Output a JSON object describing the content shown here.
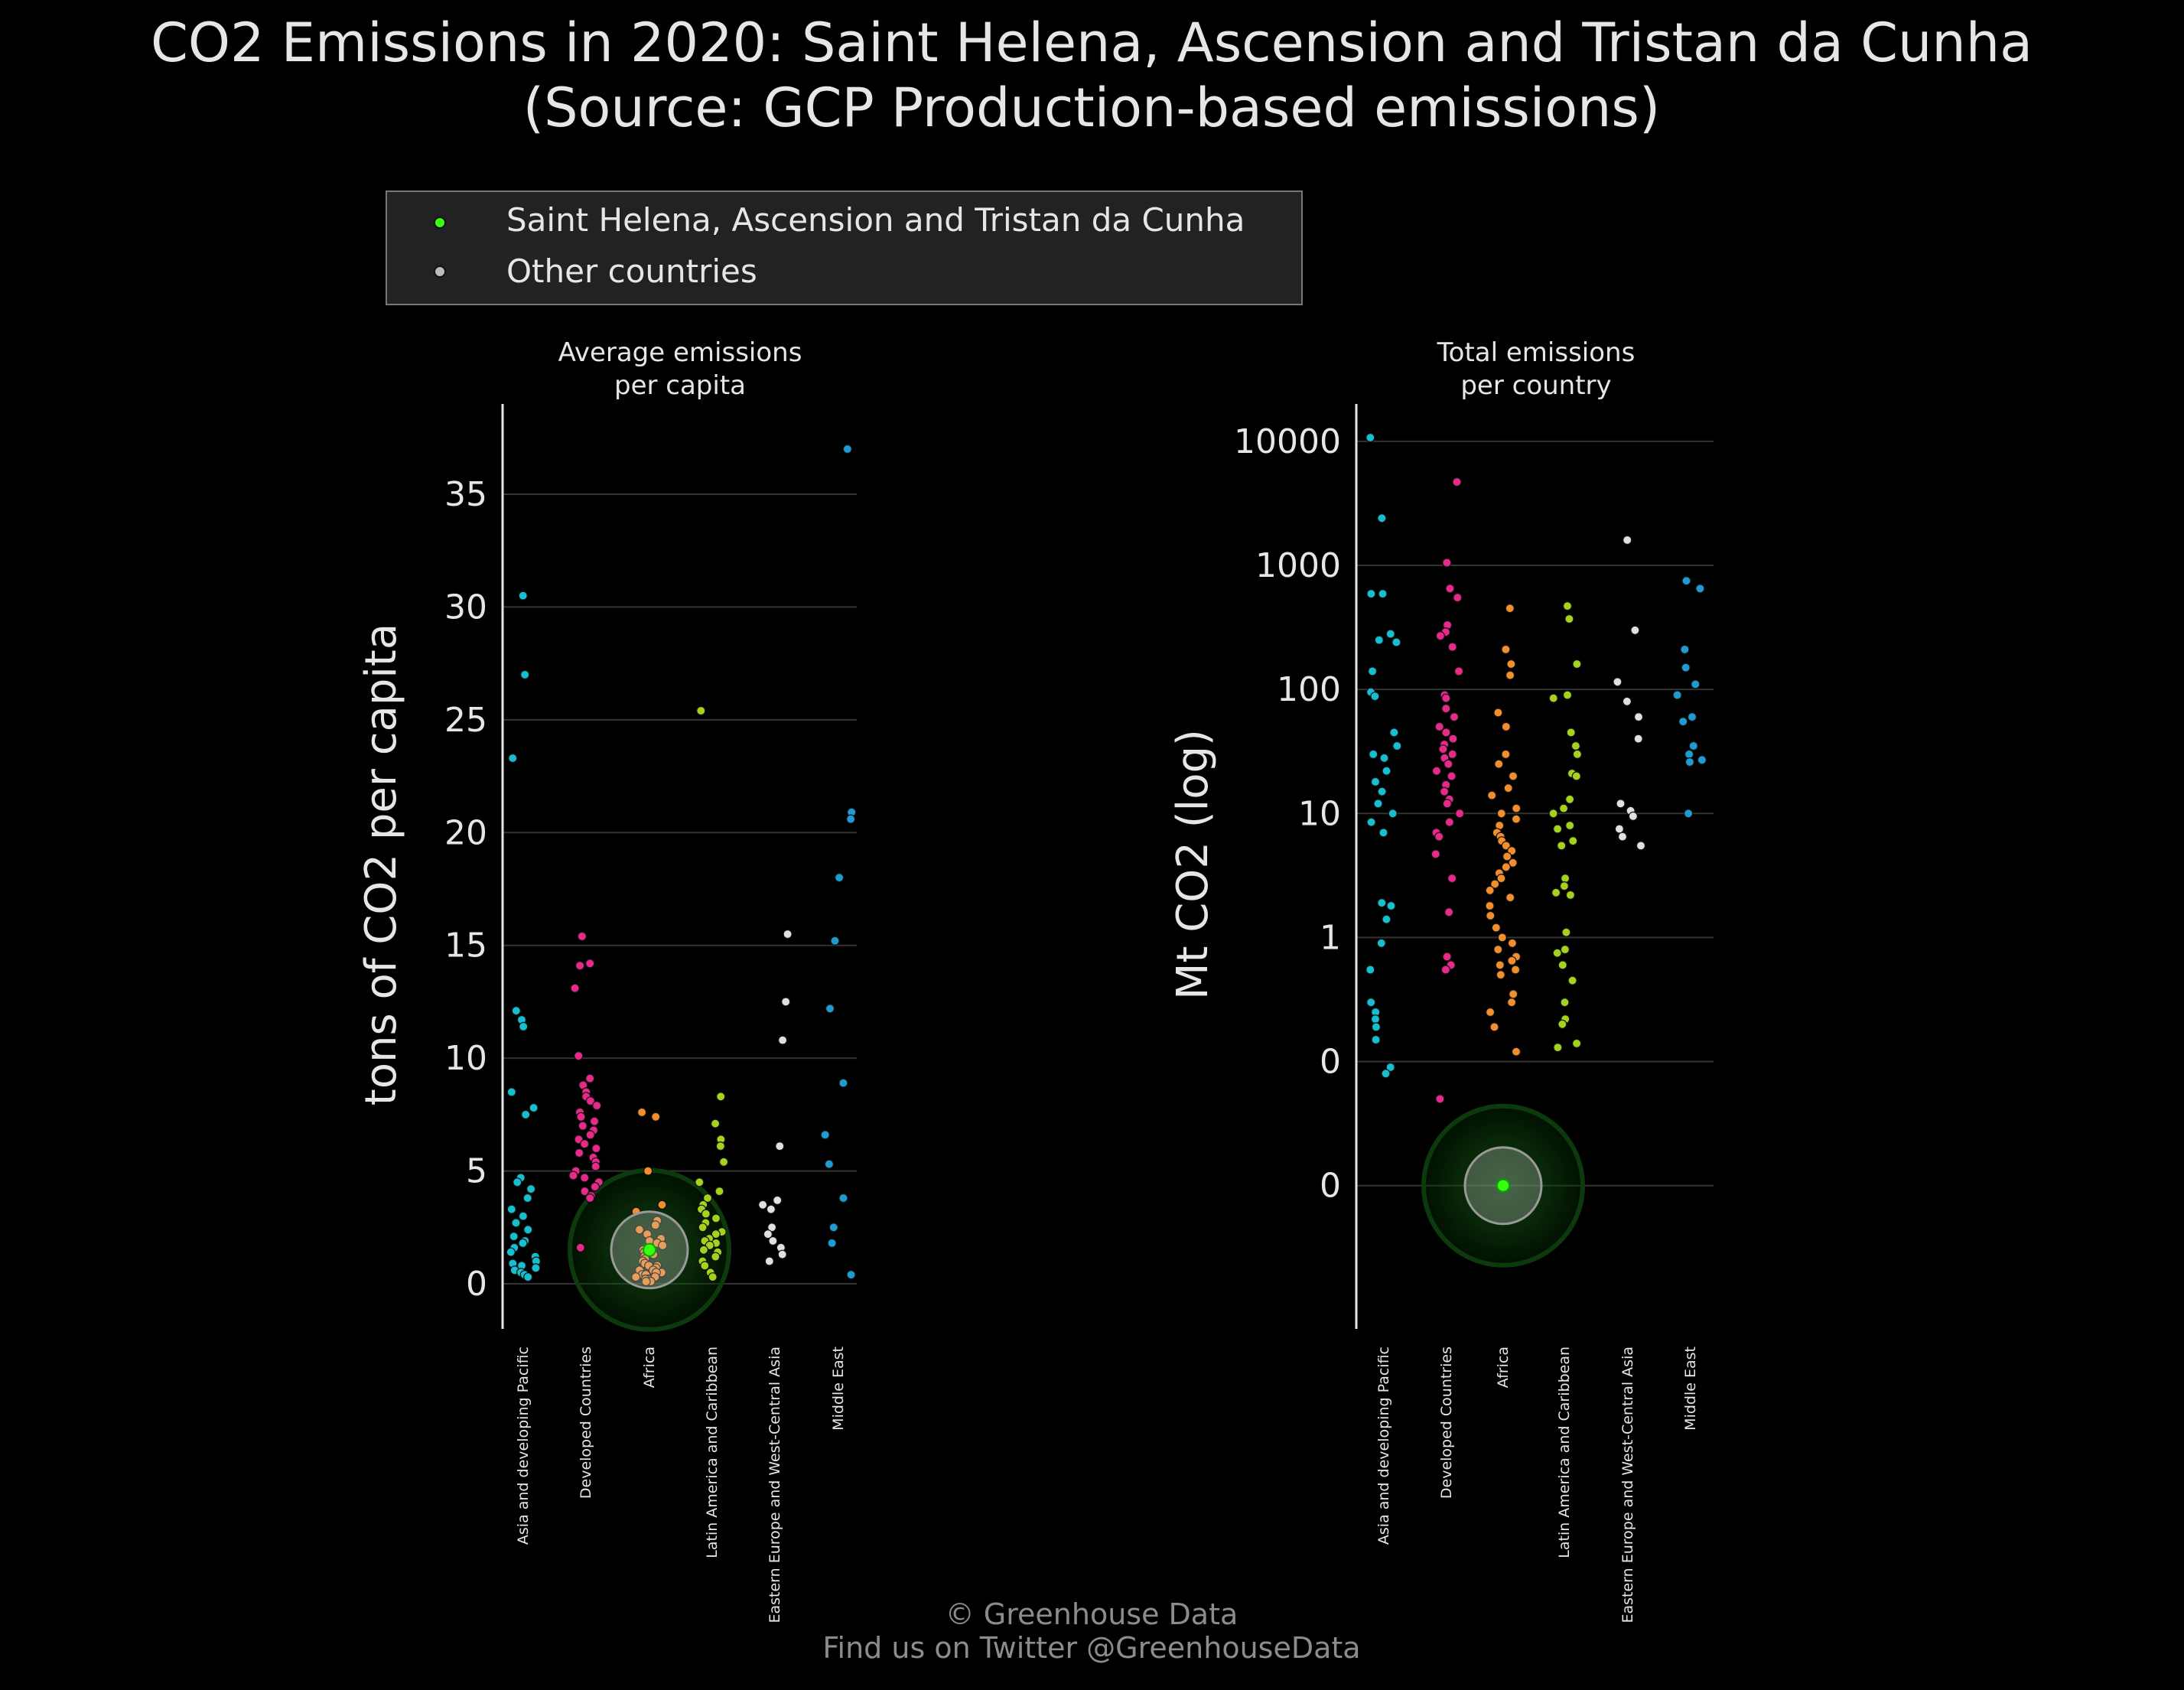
{
  "title_line1": "CO2 Emissions in 2020: Saint Helena, Ascension and Tristan da Cunha",
  "title_line2": "(Source: GCP Production-based emissions)",
  "legend": {
    "highlight_label": "Saint Helena, Ascension and Tristan da Cunha",
    "other_label": "Other countries"
  },
  "footer": {
    "line1": "© Greenhouse Data",
    "line2": "Find us on Twitter @GreenhouseData"
  },
  "colors": {
    "background": "#000000",
    "highlight": "#39ff14",
    "other": "#bbbbbb",
    "groups": [
      "#17becf",
      "#e7298a",
      "#f28e2b",
      "#a4d21e",
      "#e0e0e0",
      "#1f9bd4"
    ]
  },
  "chart_data": [
    {
      "type": "scatter",
      "subtitle_line1": "Average emissions",
      "subtitle_line2": "per capita",
      "ylabel": "tons of CO2 per capita",
      "ylim": [
        -2,
        39
      ],
      "yscale": "linear",
      "yticks": [
        0,
        5,
        10,
        15,
        20,
        25,
        30,
        35
      ],
      "ytick_labels": [
        "0",
        "5",
        "10",
        "15",
        "20",
        "25",
        "30",
        "35"
      ],
      "categories": [
        "Asia and developing Pacific",
        "Developed Countries",
        "Africa",
        "Latin America and Caribbean",
        "Eastern Europe and West-Central Asia",
        "Middle East"
      ],
      "highlight": {
        "category": "Africa",
        "value": 1.5
      },
      "series": [
        {
          "category": "Asia and developing Pacific",
          "values": [
            30.5,
            27.0,
            23.3,
            12.1,
            11.7,
            11.4,
            8.5,
            7.8,
            7.5,
            4.7,
            4.5,
            4.2,
            3.8,
            3.3,
            3.0,
            2.7,
            2.4,
            2.1,
            1.9,
            1.8,
            1.6,
            1.4,
            1.2,
            1.0,
            0.9,
            0.8,
            0.7,
            0.6,
            0.5,
            0.4,
            0.3
          ]
        },
        {
          "category": "Developed Countries",
          "values": [
            15.4,
            14.2,
            14.1,
            13.1,
            10.1,
            9.1,
            8.8,
            8.5,
            8.3,
            8.1,
            7.9,
            7.6,
            7.4,
            7.2,
            7.0,
            6.8,
            6.6,
            6.4,
            6.2,
            6.0,
            5.8,
            5.6,
            5.4,
            5.2,
            5.0,
            4.8,
            4.7,
            4.5,
            4.3,
            4.1,
            3.9,
            3.8,
            1.6
          ]
        },
        {
          "category": "Africa",
          "values": [
            7.6,
            7.4,
            5.0,
            3.5,
            3.2,
            2.8,
            2.6,
            2.4,
            2.2,
            2.0,
            1.9,
            1.8,
            1.7,
            1.6,
            1.5,
            1.4,
            1.3,
            1.2,
            1.1,
            1.0,
            0.9,
            0.8,
            0.8,
            0.7,
            0.6,
            0.6,
            0.5,
            0.5,
            0.4,
            0.4,
            0.3,
            0.3,
            0.2,
            0.2,
            0.2,
            0.1,
            0.1
          ]
        },
        {
          "category": "Latin America and Caribbean",
          "values": [
            25.4,
            8.3,
            7.1,
            6.4,
            6.1,
            5.4,
            4.5,
            4.1,
            3.8,
            3.5,
            3.3,
            3.1,
            2.9,
            2.7,
            2.5,
            2.3,
            2.2,
            2.0,
            1.9,
            1.8,
            1.7,
            1.5,
            1.4,
            1.2,
            1.0,
            0.8,
            0.5,
            0.3
          ]
        },
        {
          "category": "Eastern Europe and West-Central Asia",
          "values": [
            15.5,
            12.5,
            10.8,
            6.1,
            3.7,
            3.5,
            3.3,
            2.5,
            2.2,
            1.9,
            1.6,
            1.3,
            1.0
          ]
        },
        {
          "category": "Middle East",
          "values": [
            37.0,
            20.9,
            20.6,
            18.0,
            15.2,
            12.2,
            8.9,
            6.6,
            5.3,
            3.8,
            2.5,
            1.8,
            0.4
          ]
        }
      ]
    },
    {
      "type": "scatter",
      "subtitle_line1": "Total emissions",
      "subtitle_line2": "per country",
      "ylabel": "Mt CO2 (log)",
      "ylim": [
        0.0007,
        20000
      ],
      "yscale": "log",
      "yticks": [
        0.01,
        0.1,
        1,
        10,
        100,
        1000,
        10000
      ],
      "ytick_labels": [
        "0",
        "0",
        "1",
        "10",
        "100",
        "1000",
        "10000"
      ],
      "categories": [
        "Asia and developing Pacific",
        "Developed Countries",
        "Africa",
        "Latin America and Caribbean",
        "Eastern Europe and West-Central Asia",
        "Middle East"
      ],
      "highlight": {
        "category": "Africa",
        "value": 0.01
      },
      "series": [
        {
          "category": "Asia and developing Pacific",
          "values": [
            10700,
            2400,
            590,
            590,
            280,
            250,
            240,
            140,
            95,
            88,
            45,
            35,
            30,
            28,
            22,
            18,
            15,
            12,
            10,
            8.5,
            7,
            1.9,
            1.8,
            1.4,
            0.9,
            0.55,
            0.3,
            0.25,
            0.22,
            0.19,
            0.15,
            0.09,
            0.08
          ]
        },
        {
          "category": "Developed Countries",
          "values": [
            4700,
            1050,
            650,
            550,
            330,
            290,
            270,
            220,
            140,
            90,
            85,
            70,
            60,
            50,
            45,
            40,
            36,
            33,
            30,
            28,
            25,
            22,
            20,
            17,
            15,
            13,
            12,
            10,
            8.5,
            7,
            6.5,
            4.7,
            3,
            1.6,
            0.7,
            0.6,
            0.55,
            0.05
          ]
        },
        {
          "category": "Africa",
          "values": [
            450,
            210,
            160,
            130,
            65,
            50,
            30,
            25,
            20,
            16,
            14,
            11,
            10,
            9,
            8,
            7,
            6.5,
            6,
            5.5,
            5,
            4.5,
            4,
            3.7,
            3.3,
            3,
            2.7,
            2.4,
            2.1,
            1.8,
            1.5,
            1.2,
            1.0,
            0.9,
            0.8,
            0.7,
            0.65,
            0.6,
            0.55,
            0.5,
            0.35,
            0.3,
            0.25,
            0.19,
            0.12
          ]
        },
        {
          "category": "Latin America and Caribbean",
          "values": [
            470,
            370,
            160,
            90,
            85,
            45,
            35,
            30,
            21,
            20,
            13,
            11,
            10,
            8,
            7.5,
            6,
            5.5,
            3,
            2.6,
            2.3,
            2.2,
            1.1,
            0.8,
            0.75,
            0.6,
            0.45,
            0.3,
            0.22,
            0.2,
            0.14,
            0.13
          ]
        },
        {
          "category": "Eastern Europe and West-Central Asia",
          "values": [
            1600,
            300,
            115,
            80,
            60,
            40,
            12,
            10.5,
            9.5,
            7.5,
            6.5,
            5.5
          ]
        },
        {
          "category": "Middle East",
          "values": [
            750,
            650,
            210,
            150,
            110,
            90,
            60,
            55,
            35,
            30,
            27,
            26,
            10
          ]
        }
      ]
    }
  ]
}
